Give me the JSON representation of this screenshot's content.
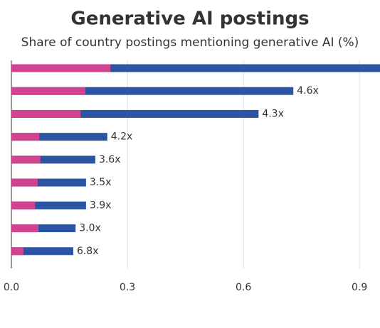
{
  "chart_data": {
    "type": "bar",
    "orientation": "horizontal",
    "overlap": true,
    "title": "Generative AI postings",
    "subtitle": "Share of country postings mentioning generative AI (%)",
    "series": [
      {
        "color": "#2b55a3",
        "values": [
          0.96,
          0.729,
          0.639,
          0.248,
          0.217,
          0.193,
          0.193,
          0.166,
          0.16
        ]
      },
      {
        "color": "#d0448f",
        "values": [
          0.256,
          0.191,
          0.179,
          0.072,
          0.075,
          0.068,
          0.061,
          0.07,
          0.031
        ]
      }
    ],
    "annotations": [
      null,
      "4.6x",
      "4.3x",
      "4.2x",
      "3.6x",
      "3.5x",
      "3.9x",
      "3.0x",
      "6.8x"
    ],
    "xlim": [
      0,
      0.953
    ],
    "xticks": [
      {
        "value": 0,
        "label": "0.0"
      },
      0.3,
      0.6,
      0.9
    ],
    "grid": true
  }
}
